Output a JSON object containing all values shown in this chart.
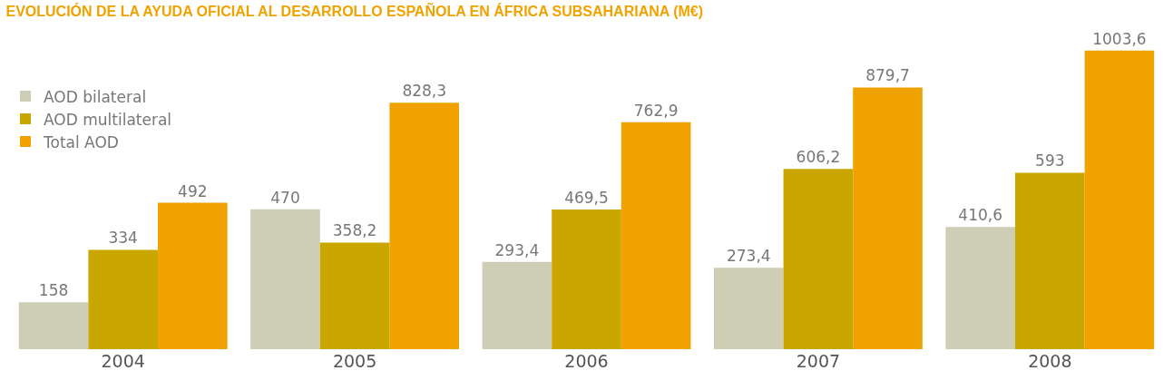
{
  "chart_data": {
    "type": "bar",
    "title": "EVOLUCIÓN DE LA AYUDA OFICIAL AL DESARROLLO ESPAÑOLA EN ÁFRICA SUBSAHARIANA (M€)",
    "categories": [
      "2004",
      "2005",
      "2006",
      "2007",
      "2008"
    ],
    "series": [
      {
        "name": "AOD bilateral",
        "color": "#cecdb6",
        "values": [
          158,
          470,
          293.4,
          273.4,
          410.6
        ],
        "value_labels": [
          "158",
          "470",
          "293,4",
          "273,4",
          "410,6"
        ]
      },
      {
        "name": "AOD multilateral",
        "color": "#c9a700",
        "values": [
          334,
          358.2,
          469.5,
          606.2,
          593
        ],
        "value_labels": [
          "334",
          "358,2",
          "469,5",
          "606,2",
          "593"
        ]
      },
      {
        "name": "Total AOD",
        "color": "#f0a300",
        "values": [
          492,
          828.3,
          762.9,
          879.7,
          1003.6
        ],
        "value_labels": [
          "492",
          "828,3",
          "762,9",
          "879,7",
          "1003,6"
        ]
      }
    ],
    "legend": "top left",
    "grid": false
  }
}
